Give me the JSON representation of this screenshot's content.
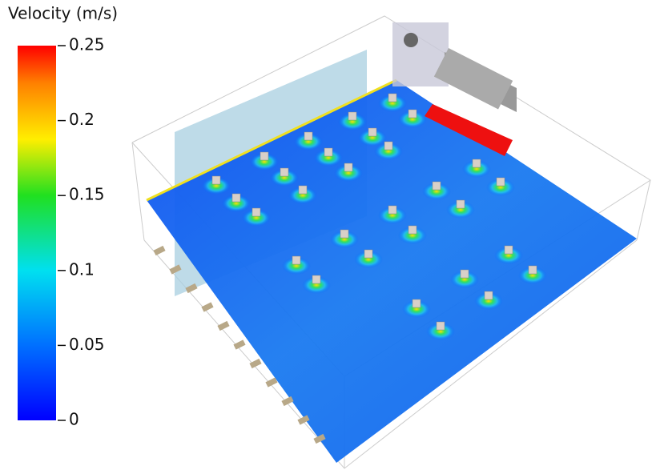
{
  "colorbar": {
    "title": "Velocity (m/s)",
    "lim": [
      0,
      0.25
    ],
    "ticks": [
      0.25,
      0.2,
      0.15,
      0.1,
      0.05,
      0
    ]
  }
}
